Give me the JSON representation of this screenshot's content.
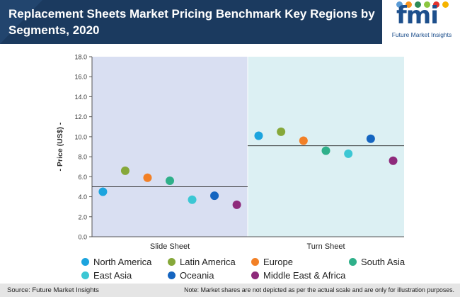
{
  "header": {
    "title": "Replacement Sheets Market Pricing Benchmark Key Regions by Segments, 2020",
    "logo_text": "fmi",
    "logo_subtitle": "Future Market Insights",
    "logo_dot_colors": [
      "#5b9bd5",
      "#f7941d",
      "#2e8b57",
      "#8cc63f",
      "#e3342f",
      "#f5b400"
    ]
  },
  "chart_data": {
    "type": "scatter",
    "title": "Replacement Sheets Market Pricing Benchmark Key Regions by Segments, 2020",
    "ylabel": "- Price (US$) -",
    "xlabel": "",
    "ylim": [
      0,
      18
    ],
    "yticks": [
      "0.0",
      "2.0",
      "4.0",
      "6.0",
      "8.0",
      "10.0",
      "12.0",
      "14.0",
      "16.0",
      "18.0"
    ],
    "categories": [
      "Slide Sheet",
      "Turn Sheet"
    ],
    "panel_colors": [
      "#d9dff2",
      "#dcf0f3"
    ],
    "reference_lines": [
      5.0,
      9.1
    ],
    "series": [
      {
        "name": "North America",
        "color": "#1ca4de",
        "values": [
          4.5,
          10.1
        ]
      },
      {
        "name": "Latin America",
        "color": "#86a83a",
        "values": [
          6.6,
          10.5
        ]
      },
      {
        "name": "Europe",
        "color": "#f28026",
        "values": [
          5.9,
          9.6
        ]
      },
      {
        "name": "South Asia",
        "color": "#2fb08a",
        "values": [
          5.6,
          8.6
        ]
      },
      {
        "name": "East Asia",
        "color": "#3cc7d4",
        "values": [
          3.7,
          8.3
        ]
      },
      {
        "name": "Oceania",
        "color": "#1565c0",
        "values": [
          4.1,
          9.8
        ]
      },
      {
        "name": "Middle East & Africa",
        "color": "#8e2a7b",
        "values": [
          3.2,
          7.6
        ]
      }
    ]
  },
  "footer": {
    "source": "Source: Future Market Insights",
    "note": "Note: Market shares are not depicted as per the actual scale and are only for illustration purposes."
  }
}
